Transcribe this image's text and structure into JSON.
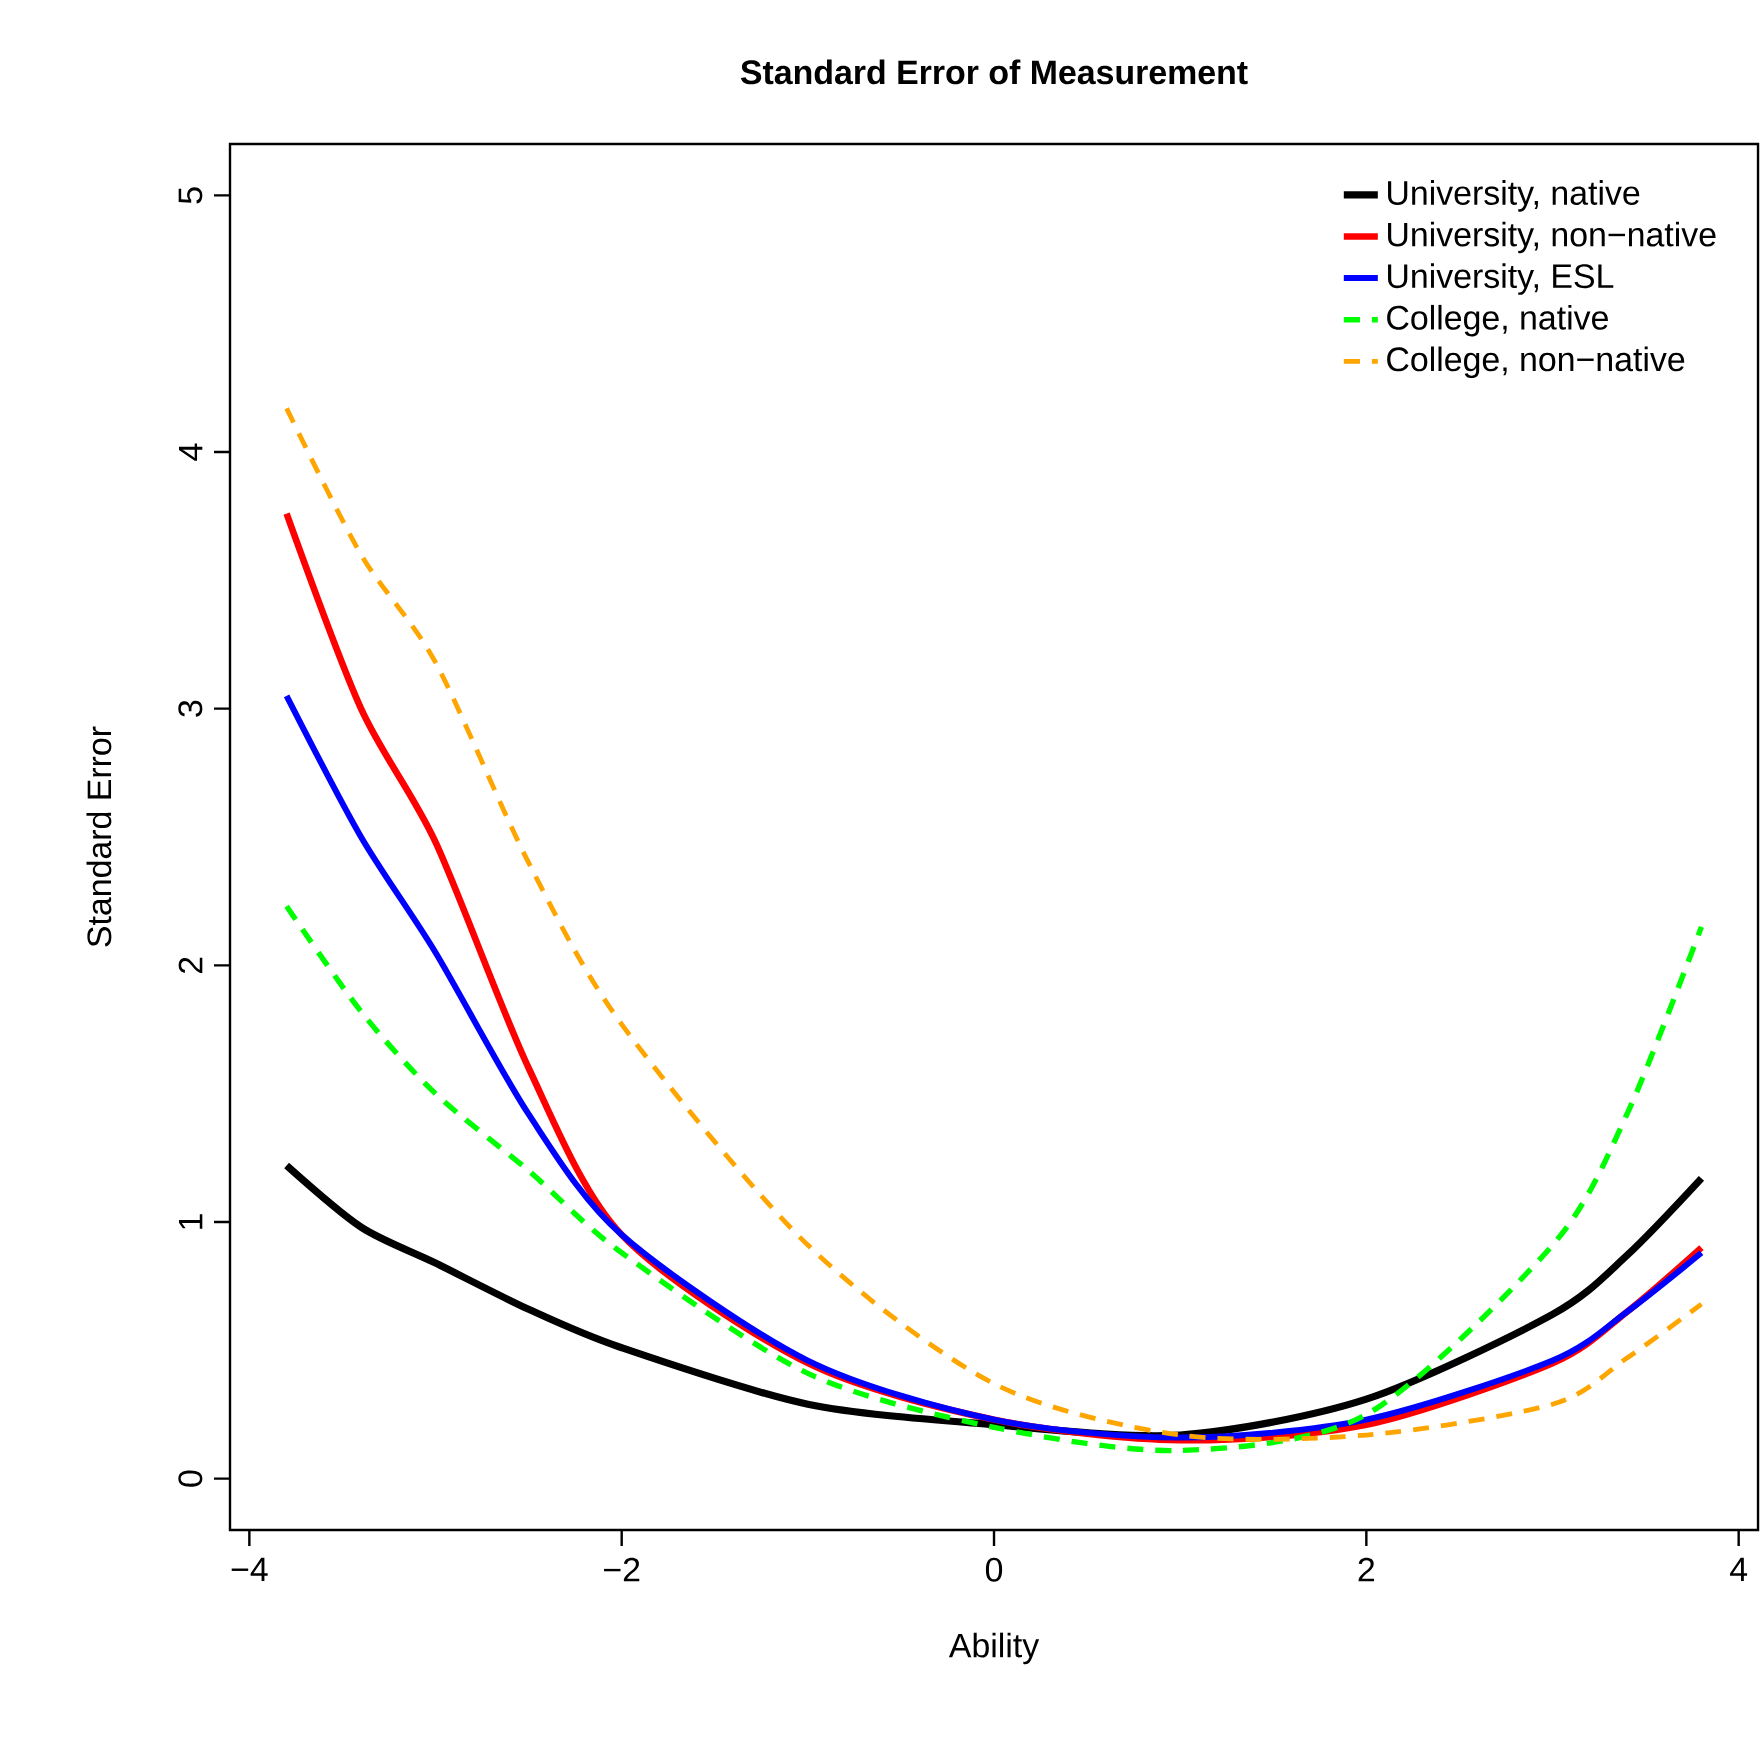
{
  "chart_data": {
    "type": "line",
    "title": "Standard Error of Measurement",
    "xlabel": "Ability",
    "ylabel": "Standard Error",
    "xlim": [
      -4.104,
      4.104
    ],
    "xticks": [
      {
        "value": -4,
        "label": "−4"
      },
      {
        "value": -2,
        "label": "−2"
      },
      0,
      2,
      4
    ],
    "ylim": [
      -0.2,
      5.2
    ],
    "yticks": [
      0,
      1,
      2,
      3,
      4,
      5
    ],
    "grid": false,
    "legend": "top right",
    "marker": "none",
    "x": [
      -3.8,
      -3.4,
      -3,
      -2.5,
      -2,
      -1,
      0,
      1,
      2,
      3,
      3.4,
      3.8
    ],
    "series": [
      {
        "name": "University, native",
        "color": "#000000",
        "line_style": "solid",
        "values": [
          1.22,
          0.98,
          0.84,
          0.66,
          0.51,
          0.29,
          0.21,
          0.17,
          0.31,
          0.64,
          0.87,
          1.17
        ]
      },
      {
        "name": "University, non−native",
        "color": "#ff0000",
        "line_style": "solid",
        "values": [
          3.76,
          3.0,
          2.48,
          1.6,
          0.95,
          0.45,
          0.23,
          0.15,
          0.21,
          0.45,
          0.65,
          0.9
        ]
      },
      {
        "name": "University, ESL",
        "color": "#0000ff",
        "line_style": "solid",
        "values": [
          3.05,
          2.5,
          2.05,
          1.42,
          0.95,
          0.46,
          0.23,
          0.16,
          0.23,
          0.46,
          0.65,
          0.88
        ]
      },
      {
        "name": "College, native",
        "color": "#00ff00",
        "line_style": "dashed",
        "values": [
          2.23,
          1.82,
          1.5,
          1.2,
          0.88,
          0.41,
          0.2,
          0.11,
          0.25,
          0.91,
          1.42,
          2.15
        ]
      },
      {
        "name": "College, non−native",
        "color": "#ffa500",
        "line_style": "dashed",
        "values": [
          4.17,
          3.6,
          3.18,
          2.4,
          1.77,
          0.91,
          0.37,
          0.17,
          0.17,
          0.29,
          0.47,
          0.68
        ]
      }
    ]
  }
}
